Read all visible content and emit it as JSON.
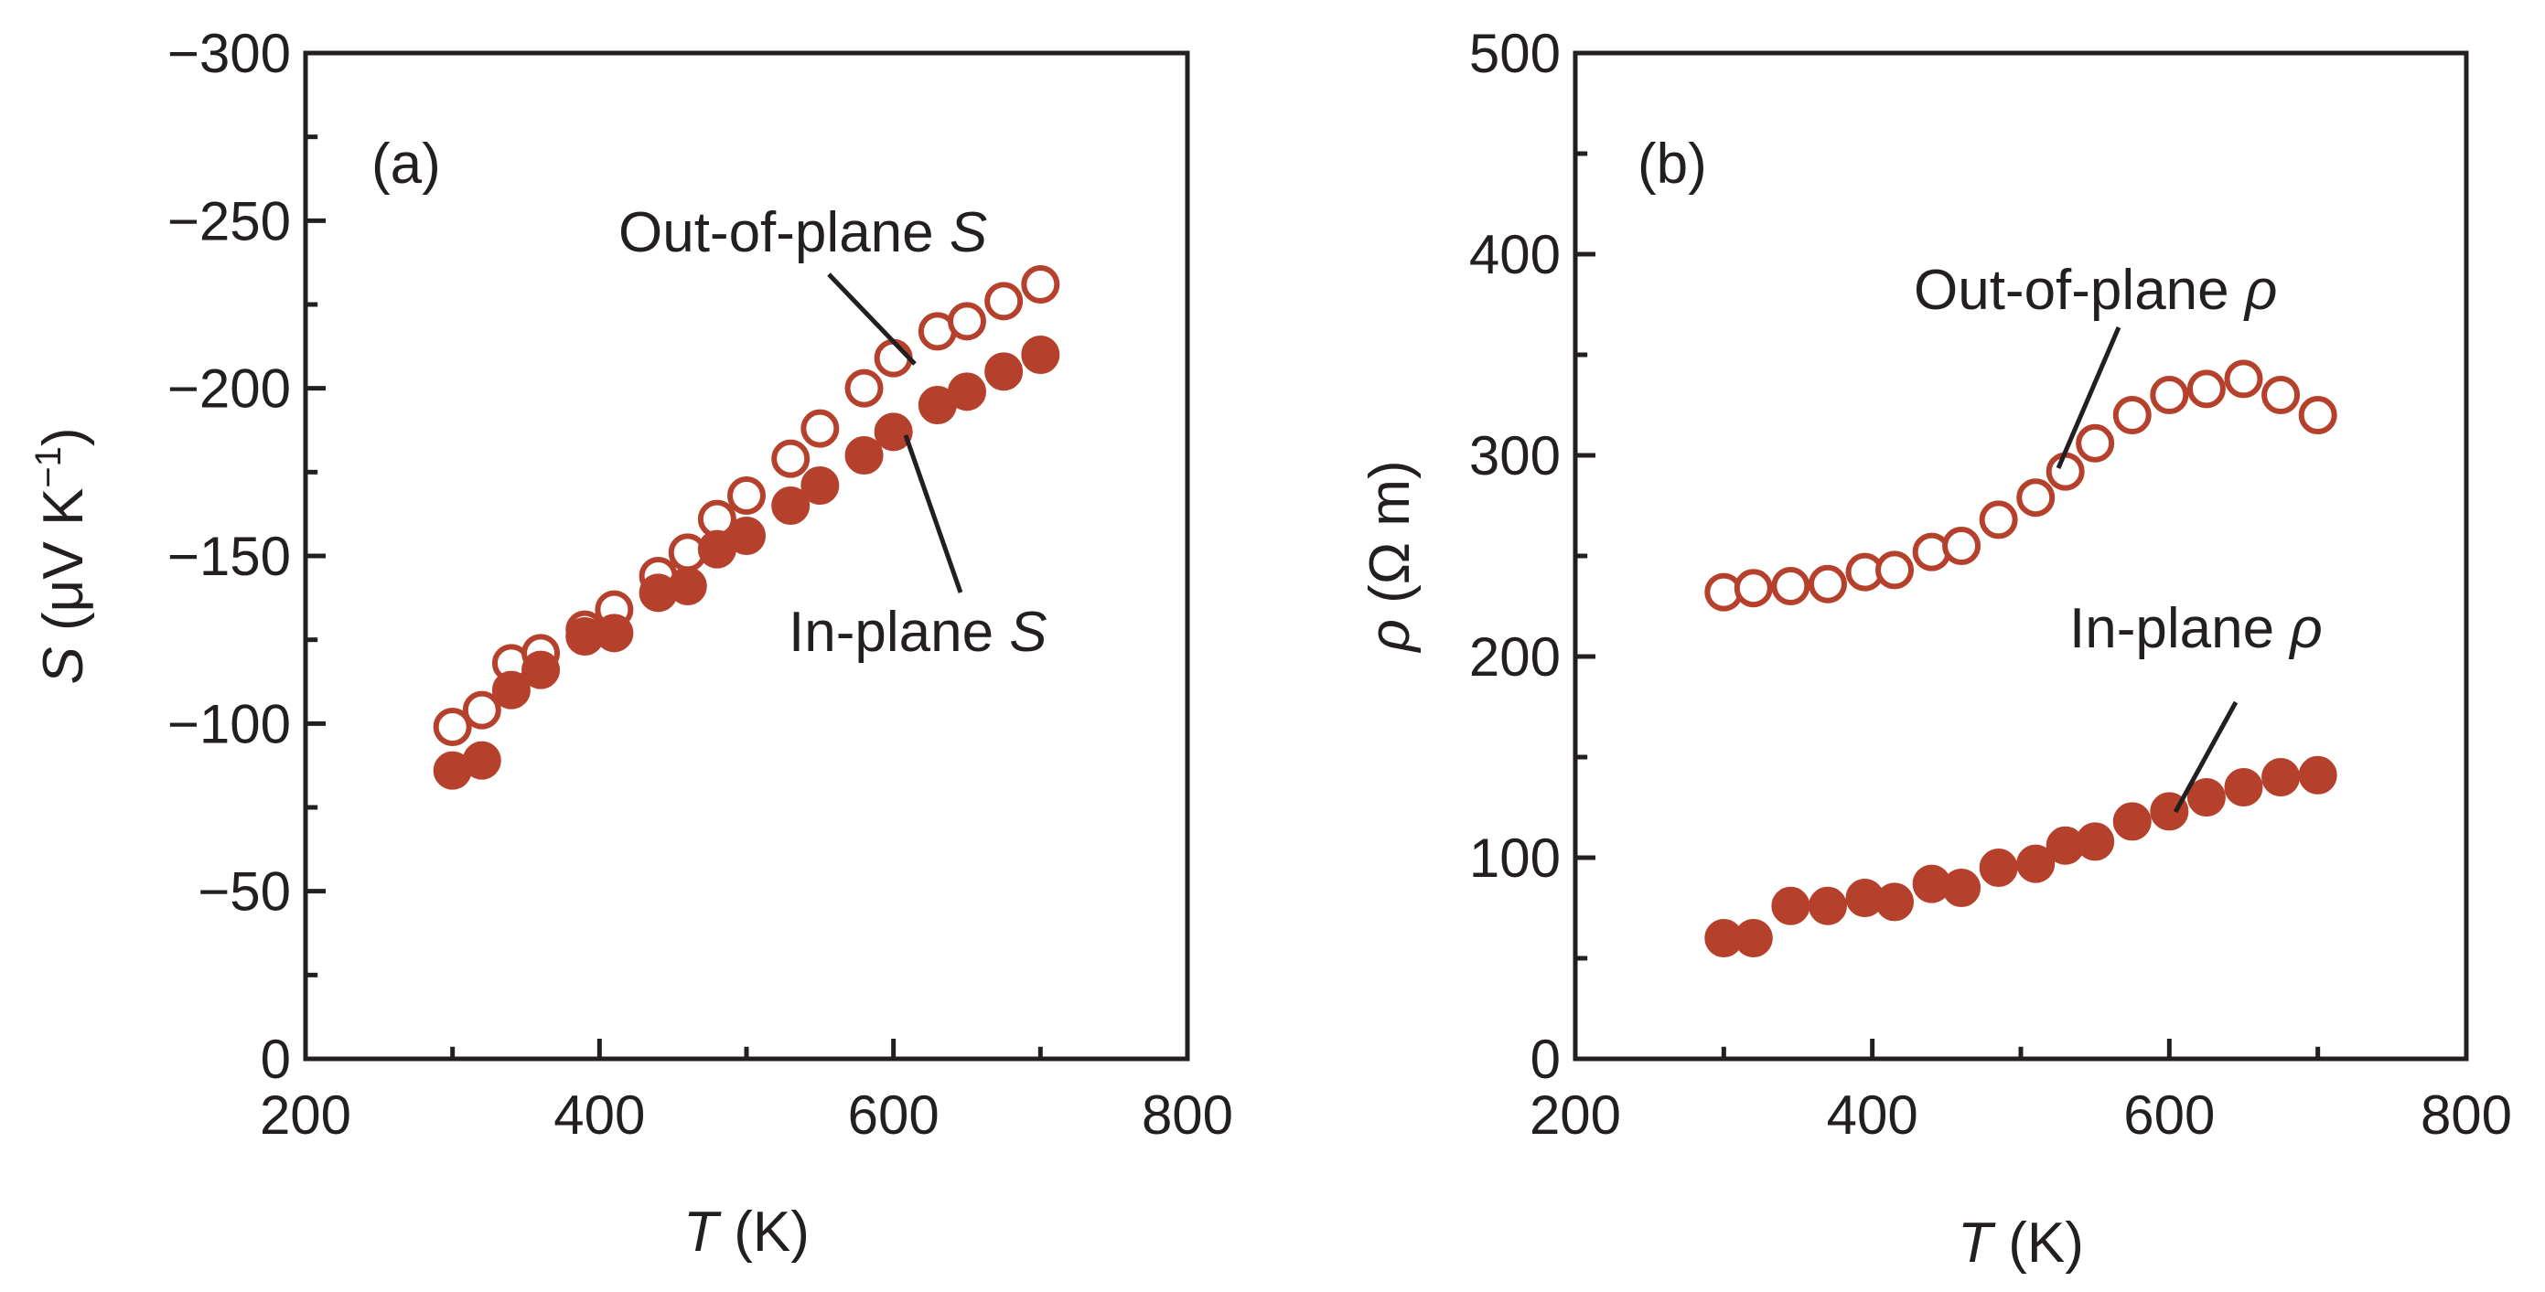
{
  "chart_data": [
    {
      "type": "scatter",
      "panel_label": "(a)",
      "xlabel_symbol": "T",
      "xlabel_unit": " (K)",
      "ylabel_symbol": "S",
      "ylabel_unit": " (μV K",
      "ylabel_exp": "−1",
      "ylabel_close": ")",
      "xlim": [
        200,
        800
      ],
      "ylim": [
        0,
        -300
      ],
      "xticks": [
        200,
        400,
        600,
        800
      ],
      "xtick_labels": [
        "200",
        "400",
        "600",
        "800"
      ],
      "yticks": [
        0,
        -50,
        -100,
        -150,
        -200,
        -250,
        -300
      ],
      "ytick_labels": [
        "0",
        "−50",
        "−100",
        "−150",
        "−200",
        "−250",
        "−300"
      ],
      "grid": false,
      "series": [
        {
          "name": "Out-of-plane S",
          "label_text": "Out-of-plane ",
          "label_symbol": "S",
          "marker": "open-circle",
          "color": "#b5402b",
          "x": [
            300,
            320,
            340,
            360,
            390,
            410,
            440,
            460,
            480,
            500,
            530,
            550,
            580,
            600,
            630,
            650,
            675,
            700
          ],
          "y": [
            -99,
            -104,
            -118,
            -121,
            -128,
            -134,
            -144,
            -151,
            -161,
            -168,
            -179,
            -188,
            -200,
            -209,
            -217,
            -220,
            -226,
            -231
          ]
        },
        {
          "name": "In-plane S",
          "label_text": "In-plane ",
          "label_symbol": "S",
          "marker": "filled-circle",
          "color": "#b5402b",
          "x": [
            300,
            320,
            340,
            360,
            390,
            410,
            440,
            460,
            480,
            500,
            530,
            550,
            580,
            600,
            630,
            650,
            675,
            700
          ],
          "y": [
            -86,
            -89,
            -110,
            -116,
            -126,
            -127,
            -139,
            -141,
            -152,
            -156,
            -165,
            -171,
            -180,
            -187,
            -195,
            -199,
            -205,
            -210
          ]
        }
      ]
    },
    {
      "type": "scatter",
      "panel_label": "(b)",
      "xlabel_symbol": "T",
      "xlabel_unit": " (K)",
      "ylabel_symbol": "ρ",
      "ylabel_unit": " (Ω m)",
      "xlim": [
        200,
        800
      ],
      "ylim": [
        0,
        500
      ],
      "xticks": [
        200,
        400,
        600,
        800
      ],
      "xtick_labels": [
        "200",
        "400",
        "600",
        "800"
      ],
      "yticks": [
        0,
        100,
        200,
        300,
        400,
        500
      ],
      "ytick_labels": [
        "0",
        "100",
        "200",
        "300",
        "400",
        "500"
      ],
      "grid": false,
      "series": [
        {
          "name": "Out-of-plane ρ",
          "label_text": "Out-of-plane ",
          "label_symbol": "ρ",
          "marker": "open-circle",
          "color": "#b5402b",
          "x": [
            300,
            320,
            345,
            370,
            395,
            415,
            440,
            460,
            485,
            510,
            530,
            550,
            575,
            600,
            625,
            650,
            675,
            700
          ],
          "y": [
            232,
            234,
            235,
            236,
            242,
            243,
            252,
            255,
            268,
            279,
            292,
            306,
            320,
            330,
            333,
            338,
            330,
            320
          ]
        },
        {
          "name": "In-plane ρ",
          "label_text": "In-plane ",
          "label_symbol": "ρ",
          "marker": "filled-circle",
          "color": "#b5402b",
          "x": [
            300,
            320,
            345,
            370,
            395,
            415,
            440,
            460,
            485,
            510,
            530,
            550,
            575,
            600,
            625,
            650,
            675,
            700
          ],
          "y": [
            60,
            60,
            76,
            76,
            80,
            78,
            87,
            85,
            95,
            97,
            106,
            108,
            118,
            123,
            130,
            135,
            140,
            141
          ]
        }
      ]
    }
  ]
}
